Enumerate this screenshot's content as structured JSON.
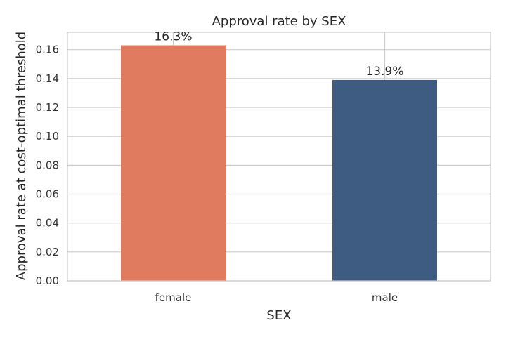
{
  "chart_data": {
    "type": "bar",
    "title": "Approval rate by SEX",
    "xlabel": "SEX",
    "ylabel": "Approval rate at cost-optimal threshold",
    "categories": [
      "female",
      "male"
    ],
    "values": [
      0.163,
      0.139
    ],
    "data_labels": [
      "16.3%",
      "13.9%"
    ],
    "colors": [
      "#e07b5f",
      "#3e5c82"
    ],
    "ylim": [
      0,
      0.172
    ],
    "yticks": [
      0.0,
      0.02,
      0.04,
      0.06,
      0.08,
      0.1,
      0.12,
      0.14,
      0.16
    ],
    "ytick_labels": [
      "0.00",
      "0.02",
      "0.04",
      "0.06",
      "0.08",
      "0.10",
      "0.12",
      "0.14",
      "0.16"
    ],
    "grid": true,
    "legend": "none"
  }
}
